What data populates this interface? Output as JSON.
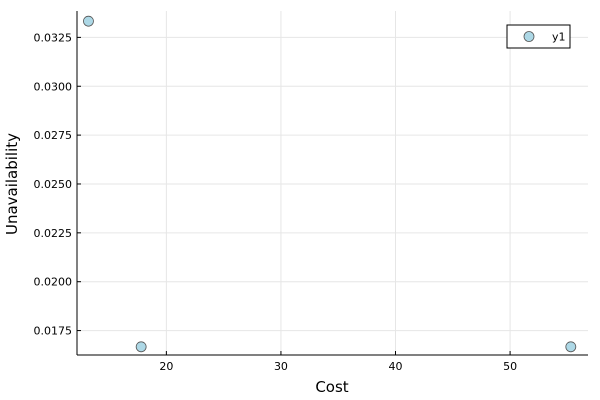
{
  "chart_data": {
    "type": "scatter",
    "xlabel": "Cost",
    "ylabel": "Unavailability",
    "xlim": [
      12.2,
      56.8
    ],
    "ylim": [
      0.01625,
      0.03385
    ],
    "x_ticks": [
      20,
      30,
      40,
      50
    ],
    "y_ticks": [
      0.0175,
      0.02,
      0.0225,
      0.025,
      0.0275,
      0.03,
      0.0325
    ],
    "x_tick_labels": [
      "20",
      "30",
      "40",
      "50"
    ],
    "y_tick_labels": [
      "0.0175",
      "0.0200",
      "0.0225",
      "0.0250",
      "0.0275",
      "0.0300",
      "0.0325"
    ],
    "grid": true,
    "legend_position": "top-right",
    "series": [
      {
        "name": "y1",
        "color": "#add8e6",
        "points": [
          {
            "x": 13.2,
            "y": 0.03333
          },
          {
            "x": 17.8,
            "y": 0.01667
          },
          {
            "x": 55.3,
            "y": 0.01667
          }
        ]
      }
    ]
  }
}
